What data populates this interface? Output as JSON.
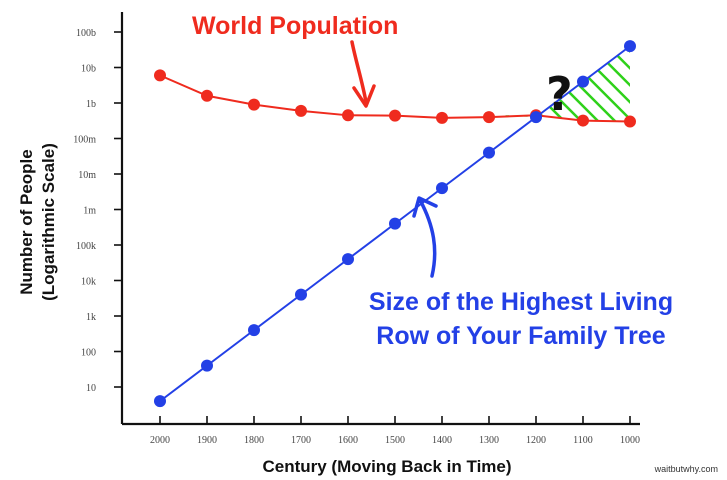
{
  "chart_data": {
    "type": "line",
    "title": "",
    "xlabel": "Century (Moving Back in Time)",
    "ylabel": [
      "Number of People",
      "(Logarithmic Scale)"
    ],
    "y_scale": "log",
    "ylim": [
      1,
      100000000000
    ],
    "grid": false,
    "legend": "none",
    "categories": [
      "2000",
      "1900",
      "1800",
      "1700",
      "1600",
      "1500",
      "1400",
      "1300",
      "1200",
      "1100",
      "1000"
    ],
    "y_tick_labels": [
      "10",
      "100",
      "1k",
      "10k",
      "100k",
      "1m",
      "10m",
      "100m",
      "1b",
      "10b",
      "100b"
    ],
    "series": [
      {
        "name": "World Population",
        "color": "#ef2b1e",
        "x": [
          2000,
          1900,
          1800,
          1700,
          1600,
          1500,
          1400,
          1300,
          1200,
          1100,
          1000
        ],
        "values": [
          6000000000,
          1600000000,
          900000000,
          600000000,
          450000000,
          440000000,
          380000000,
          400000000,
          450000000,
          320000000,
          300000000
        ]
      },
      {
        "name": "Size of the Highest Living Row of Your Family Tree",
        "color": "#2340e6",
        "x": [
          2000,
          1900,
          1800,
          1700,
          1600,
          1500,
          1400,
          1300,
          1200,
          1100,
          1000
        ],
        "values": [
          4,
          40,
          400,
          4000,
          40000,
          400000,
          4000000,
          40000000,
          400000000,
          4000000000,
          40000000000
        ]
      }
    ],
    "annotations": {
      "red_label": "World Population",
      "blue_label_line1": "Size of the Highest Living",
      "blue_label_line2": "Row of Your Family Tree",
      "question_mark": "?"
    },
    "hatch_color": "#2fd11a"
  },
  "credit": "waitbutwhy.com"
}
